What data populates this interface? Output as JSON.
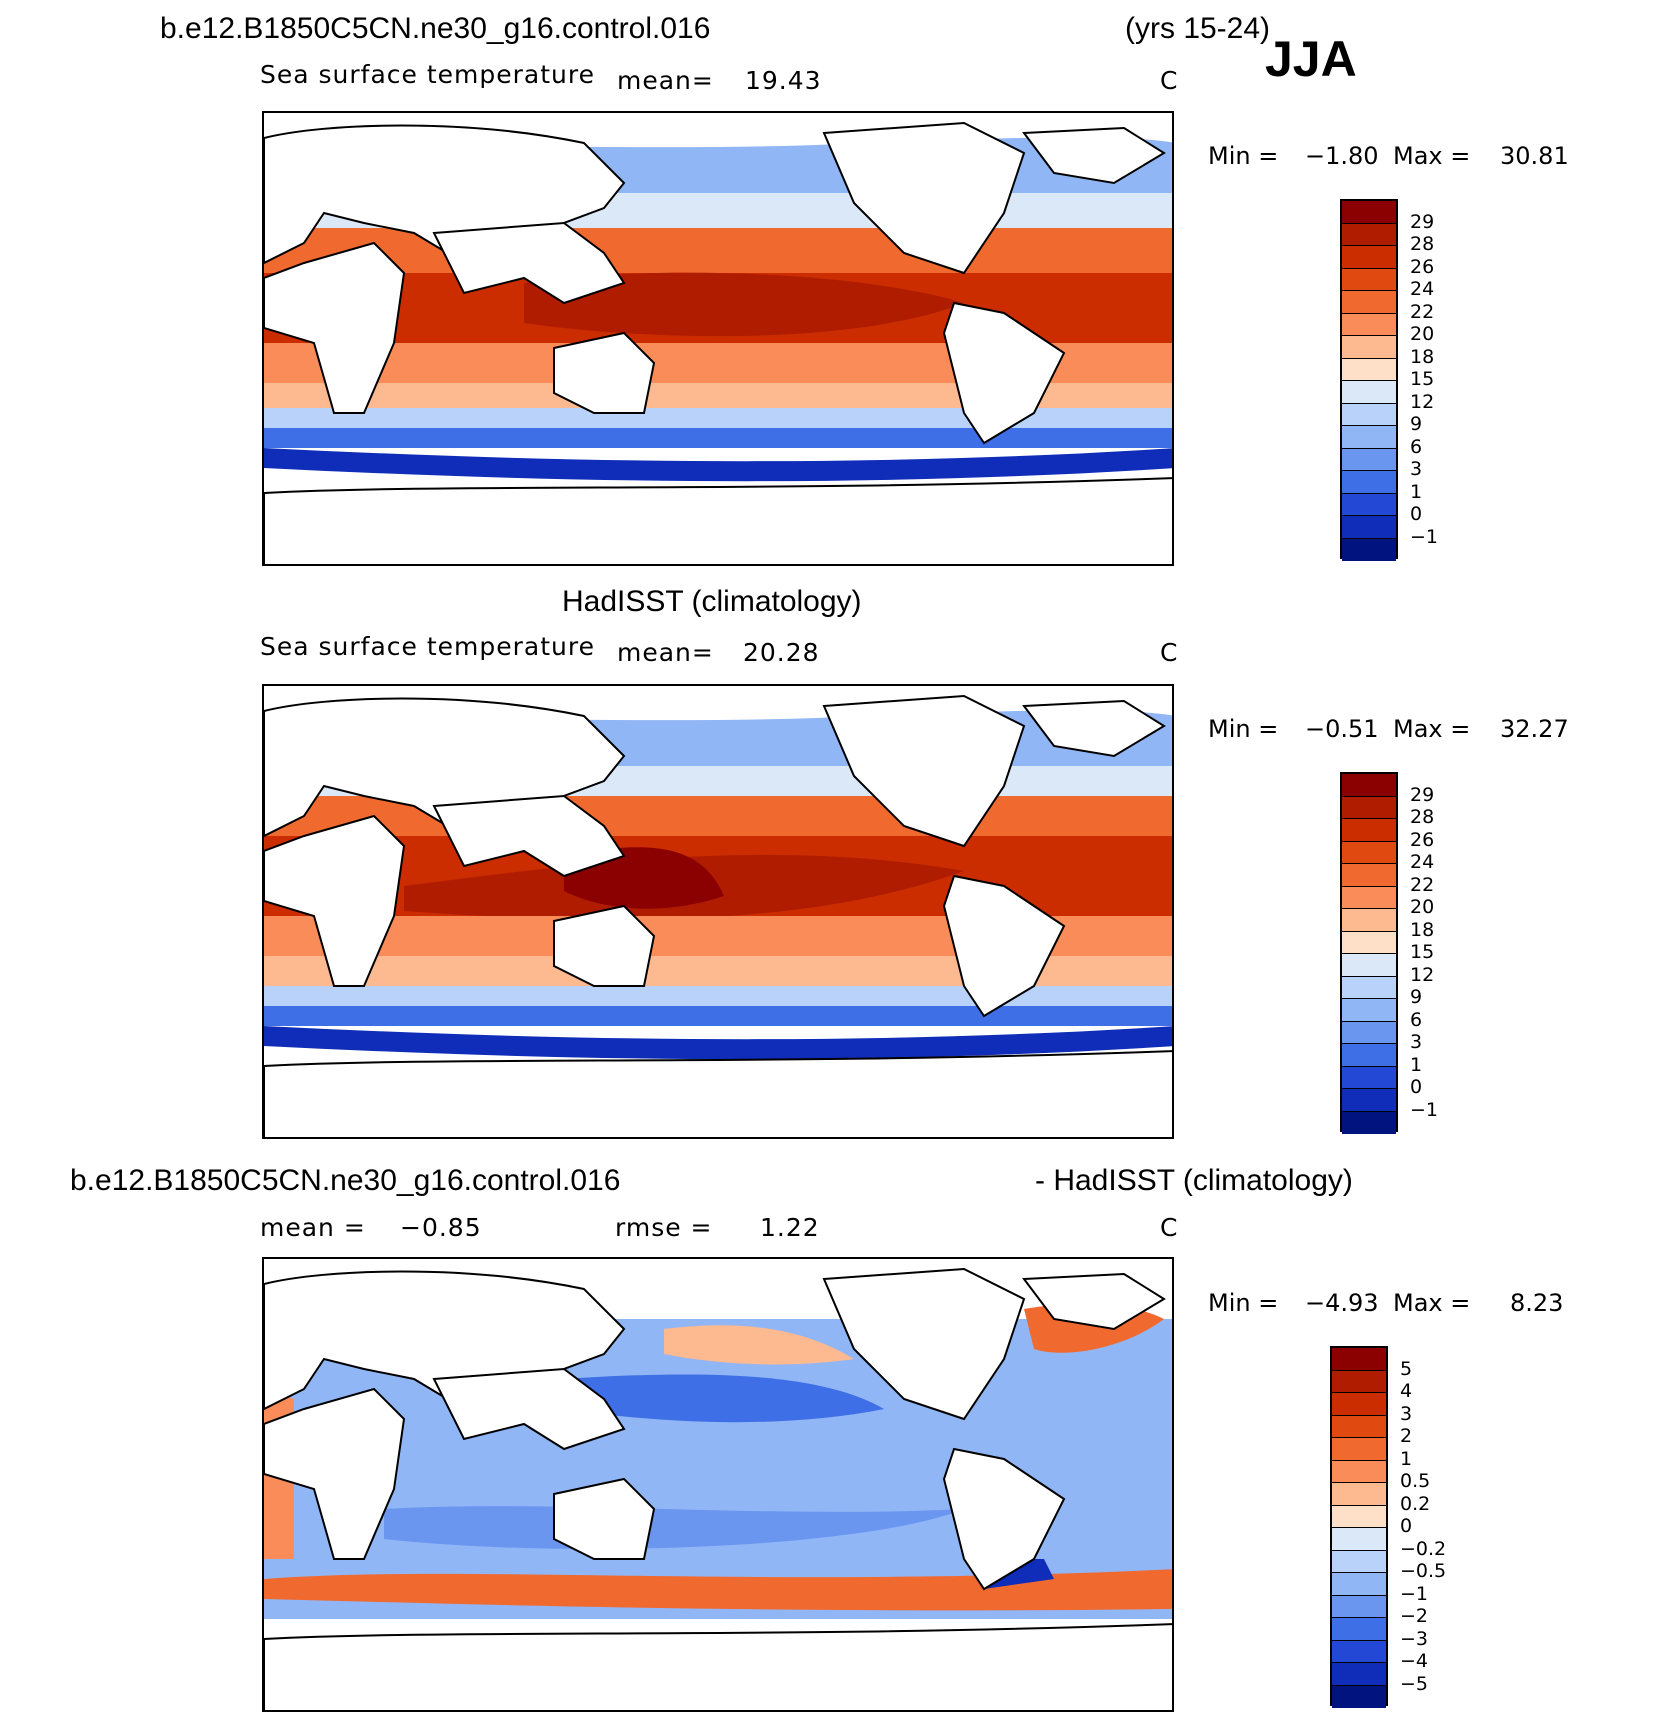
{
  "header": {
    "case_name": "b.e12.B1850C5CN.ne30_g16.control.016",
    "years": "(yrs 15-24)",
    "season": "JJA"
  },
  "panels": [
    {
      "title": "",
      "variable": "Sea surface temperature",
      "stat1_label": "mean=",
      "stat1_value": "19.43",
      "stat2_label": "",
      "stat2_value": "",
      "units": "C",
      "min_label": "Min =",
      "min_value": "−1.80",
      "max_label": "Max =",
      "max_value": "30.81",
      "colorbar": {
        "labels": [
          "29",
          "28",
          "26",
          "24",
          "22",
          "20",
          "18",
          "15",
          "12",
          "9",
          "6",
          "3",
          "1",
          "0",
          "−1"
        ],
        "colors": [
          "#8b0000",
          "#b01c00",
          "#cc2d00",
          "#e04a10",
          "#f06a30",
          "#f98c58",
          "#fdb98f",
          "#fee0c8",
          "#dbe8f8",
          "#b8d2fa",
          "#91b6f6",
          "#6a96f0",
          "#3f6fe6",
          "#2348d6",
          "#0f2db8",
          "#00137f"
        ]
      }
    },
    {
      "title": "HadISST (climatology)",
      "variable": "Sea surface temperature",
      "stat1_label": "mean=",
      "stat1_value": "20.28",
      "stat2_label": "",
      "stat2_value": "",
      "units": "C",
      "min_label": "Min =",
      "min_value": "−0.51",
      "max_label": "Max =",
      "max_value": "32.27",
      "colorbar": {
        "labels": [
          "29",
          "28",
          "26",
          "24",
          "22",
          "20",
          "18",
          "15",
          "12",
          "9",
          "6",
          "3",
          "1",
          "0",
          "−1"
        ],
        "colors": [
          "#8b0000",
          "#b01c00",
          "#cc2d00",
          "#e04a10",
          "#f06a30",
          "#f98c58",
          "#fdb98f",
          "#fee0c8",
          "#dbe8f8",
          "#b8d2fa",
          "#91b6f6",
          "#6a96f0",
          "#3f6fe6",
          "#2348d6",
          "#0f2db8",
          "#00137f"
        ]
      }
    },
    {
      "title_left": "b.e12.B1850C5CN.ne30_g16.control.016",
      "title_right": "- HadISST (climatology)",
      "stat1_label": "mean =",
      "stat1_value": "−0.85",
      "stat2_label": "rmse =",
      "stat2_value": "1.22",
      "units": "C",
      "min_label": "Min =",
      "min_value": "−4.93",
      "max_label": "Max =",
      "max_value": "8.23",
      "colorbar": {
        "labels": [
          "5",
          "4",
          "3",
          "2",
          "1",
          "0.5",
          "0.2",
          "0",
          "−0.2",
          "−0.5",
          "−1",
          "−2",
          "−3",
          "−4",
          "−5"
        ],
        "colors": [
          "#8b0000",
          "#b01c00",
          "#cc2d00",
          "#e04a10",
          "#f06a30",
          "#f98c58",
          "#fdb98f",
          "#fee0c8",
          "#dbe8f8",
          "#b8d2fa",
          "#91b6f6",
          "#6a96f0",
          "#3f6fe6",
          "#2348d6",
          "#0f2db8",
          "#00137f"
        ]
      }
    }
  ],
  "colors": {
    "land": "#ffffff",
    "coast": "#000000"
  }
}
